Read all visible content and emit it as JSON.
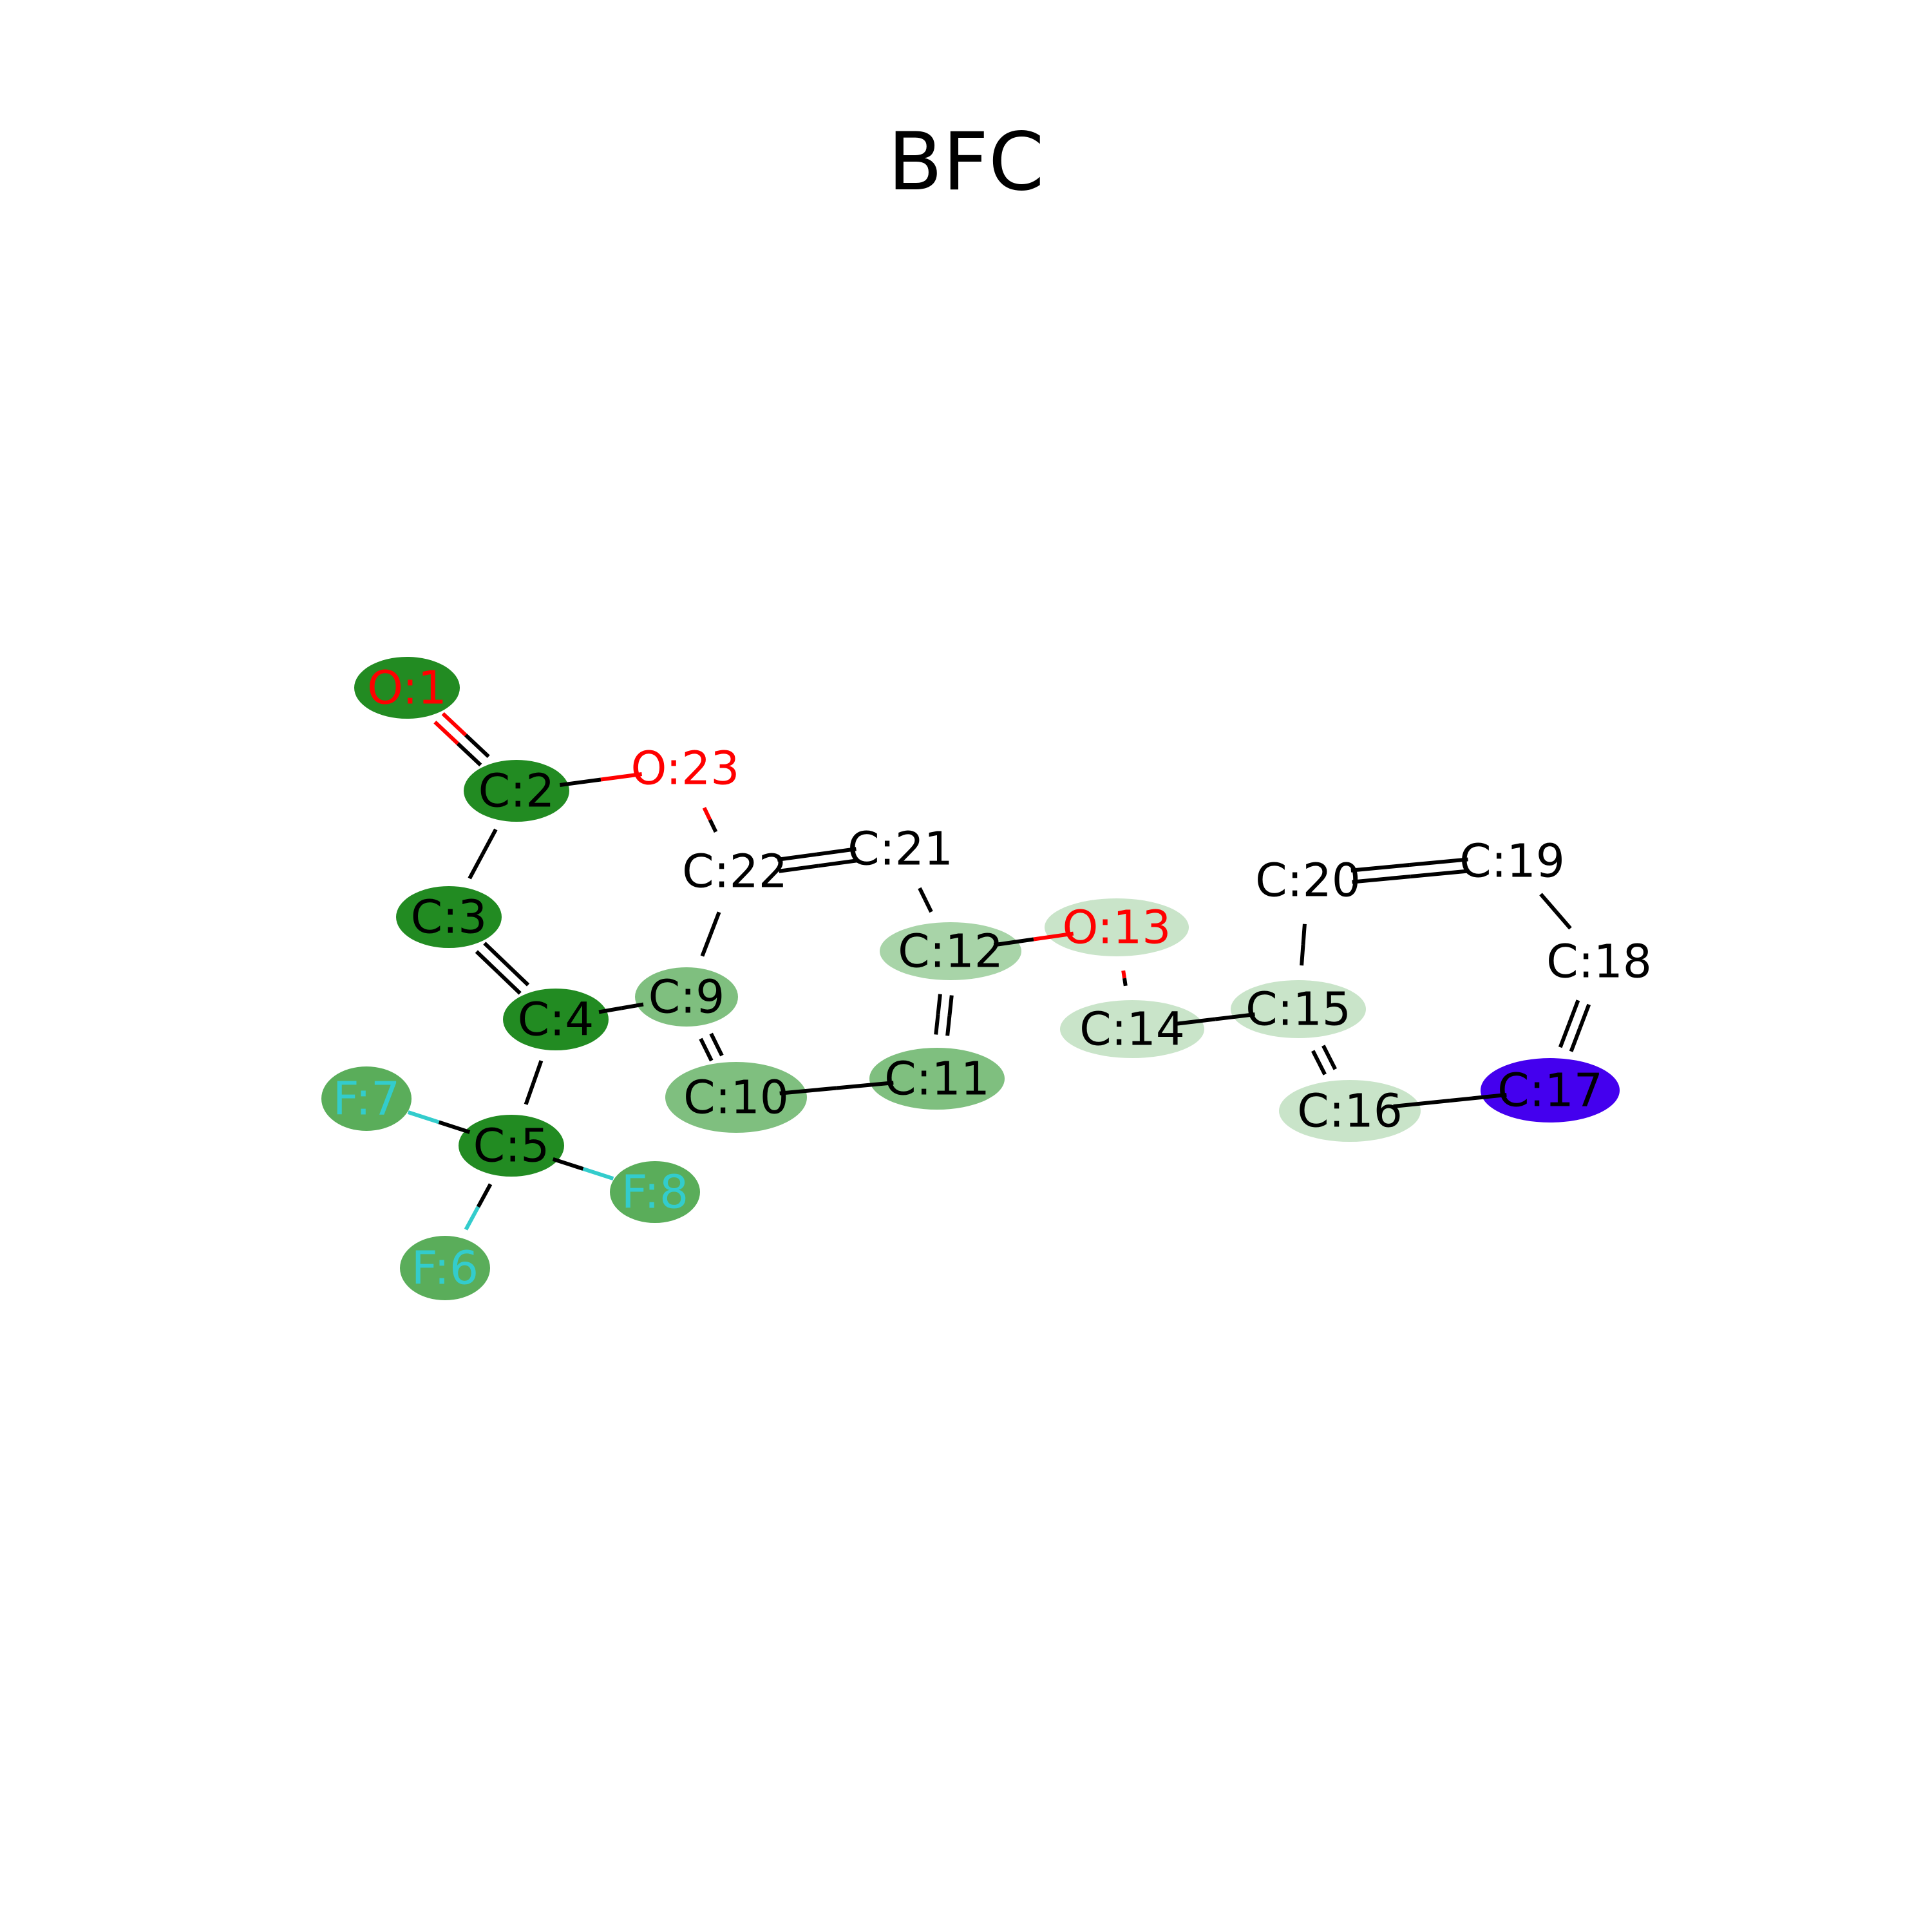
{
  "title": "BFC",
  "colors": {
    "element_C": "#000000",
    "element_O": "#ff0000",
    "element_F": "#33cccc",
    "bond_default": "#000000",
    "highlight_strong": "#228b22",
    "highlight_medium": "#5aad5a",
    "highlight_soft": "#7fbf7f",
    "highlight_light": "#a8d4a8",
    "highlight_pale": "#c9e4c9",
    "highlight_special": "#4400ee"
  },
  "molecule": {
    "atoms": [
      {
        "id": 1,
        "label": "O:1",
        "element": "O",
        "highlight": "highlight_strong"
      },
      {
        "id": 2,
        "label": "C:2",
        "element": "C",
        "highlight": "highlight_strong"
      },
      {
        "id": 3,
        "label": "C:3",
        "element": "C",
        "highlight": "highlight_strong"
      },
      {
        "id": 4,
        "label": "C:4",
        "element": "C",
        "highlight": "highlight_strong"
      },
      {
        "id": 5,
        "label": "C:5",
        "element": "C",
        "highlight": "highlight_strong"
      },
      {
        "id": 6,
        "label": "F:6",
        "element": "F",
        "highlight": "highlight_medium"
      },
      {
        "id": 7,
        "label": "F:7",
        "element": "F",
        "highlight": "highlight_medium"
      },
      {
        "id": 8,
        "label": "F:8",
        "element": "F",
        "highlight": "highlight_medium"
      },
      {
        "id": 9,
        "label": "C:9",
        "element": "C",
        "highlight": "highlight_soft"
      },
      {
        "id": 10,
        "label": "C:10",
        "element": "C",
        "highlight": "highlight_soft"
      },
      {
        "id": 11,
        "label": "C:11",
        "element": "C",
        "highlight": "highlight_soft"
      },
      {
        "id": 12,
        "label": "C:12",
        "element": "C",
        "highlight": "highlight_light"
      },
      {
        "id": 13,
        "label": "O:13",
        "element": "O",
        "highlight": "highlight_pale"
      },
      {
        "id": 14,
        "label": "C:14",
        "element": "C",
        "highlight": "highlight_pale"
      },
      {
        "id": 15,
        "label": "C:15",
        "element": "C",
        "highlight": "highlight_pale"
      },
      {
        "id": 16,
        "label": "C:16",
        "element": "C",
        "highlight": "highlight_pale"
      },
      {
        "id": 17,
        "label": "C:17",
        "element": "C",
        "highlight": "highlight_special"
      },
      {
        "id": 18,
        "label": "C:18",
        "element": "C",
        "highlight": null
      },
      {
        "id": 19,
        "label": "C:19",
        "element": "C",
        "highlight": null
      },
      {
        "id": 20,
        "label": "C:20",
        "element": "C",
        "highlight": null
      },
      {
        "id": 21,
        "label": "C:21",
        "element": "C",
        "highlight": null
      },
      {
        "id": 22,
        "label": "C:22",
        "element": "C",
        "highlight": null
      },
      {
        "id": 23,
        "label": "O:23",
        "element": "O",
        "highlight": null
      }
    ],
    "bonds": [
      {
        "from": 1,
        "to": 2,
        "order": 2
      },
      {
        "from": 2,
        "to": 23,
        "order": 1
      },
      {
        "from": 2,
        "to": 3,
        "order": 1
      },
      {
        "from": 23,
        "to": 22,
        "order": 1
      },
      {
        "from": 3,
        "to": 4,
        "order": 2
      },
      {
        "from": 4,
        "to": 9,
        "order": 1
      },
      {
        "from": 4,
        "to": 5,
        "order": 1
      },
      {
        "from": 5,
        "to": 7,
        "order": 1
      },
      {
        "from": 5,
        "to": 8,
        "order": 1
      },
      {
        "from": 5,
        "to": 6,
        "order": 1
      },
      {
        "from": 22,
        "to": 21,
        "order": 2
      },
      {
        "from": 22,
        "to": 9,
        "order": 1
      },
      {
        "from": 21,
        "to": 12,
        "order": 1
      },
      {
        "from": 9,
        "to": 10,
        "order": 2
      },
      {
        "from": 10,
        "to": 11,
        "order": 1
      },
      {
        "from": 11,
        "to": 12,
        "order": 2
      },
      {
        "from": 12,
        "to": 13,
        "order": 1
      },
      {
        "from": 13,
        "to": 14,
        "order": 1
      },
      {
        "from": 14,
        "to": 15,
        "order": 1
      },
      {
        "from": 15,
        "to": 20,
        "order": 1
      },
      {
        "from": 15,
        "to": 16,
        "order": 2
      },
      {
        "from": 16,
        "to": 17,
        "order": 1
      },
      {
        "from": 17,
        "to": 18,
        "order": 2
      },
      {
        "from": 18,
        "to": 19,
        "order": 1
      },
      {
        "from": 19,
        "to": 20,
        "order": 2
      }
    ]
  }
}
